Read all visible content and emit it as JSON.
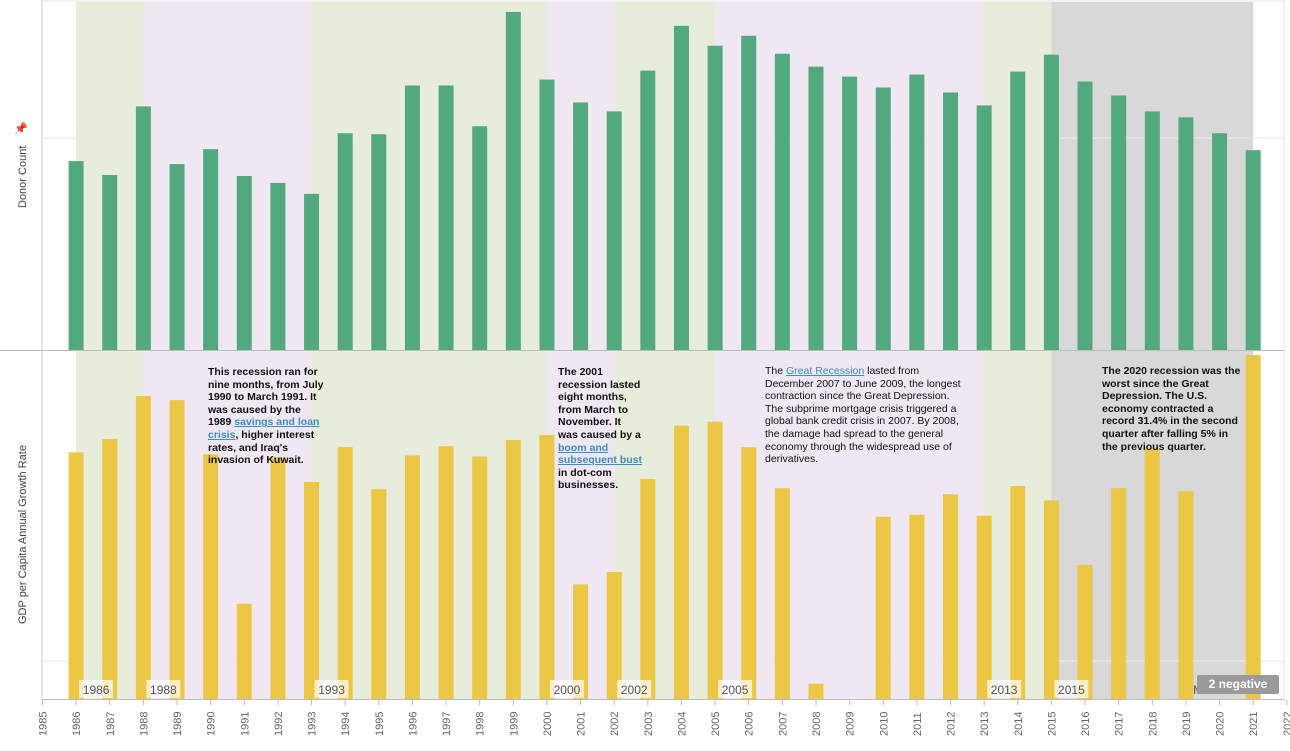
{
  "chart_data": [
    {
      "type": "bar",
      "ylabel": "Donor Count",
      "x": [
        1986,
        1987,
        1988,
        1989,
        1990,
        1991,
        1992,
        1993,
        1994,
        1995,
        1996,
        1997,
        1998,
        1999,
        2000,
        2001,
        2002,
        2003,
        2004,
        2005,
        2006,
        2007,
        2008,
        2009,
        2010,
        2011,
        2012,
        2013,
        2014,
        2015,
        2016,
        2017,
        2018,
        2019,
        2020,
        2021
      ],
      "values": [
        190,
        176,
        245,
        187,
        202,
        175,
        168,
        157,
        218,
        217,
        266,
        266,
        225,
        340,
        272,
        249,
        240,
        281,
        326,
        306,
        316,
        298,
        285,
        275,
        264,
        277,
        259,
        246,
        280,
        297,
        270,
        256,
        240,
        234,
        218,
        201
      ],
      "ylim": [
        0,
        350
      ],
      "color": "#52a97e"
    },
    {
      "type": "bar",
      "ylabel": "GDP per Capita Annual Growth Rate",
      "x": [
        1986,
        1987,
        1988,
        1989,
        1990,
        1991,
        1992,
        1993,
        1994,
        1995,
        1996,
        1997,
        1998,
        1999,
        2000,
        2001,
        2002,
        2003,
        2004,
        2005,
        2006,
        2007,
        2008,
        2009,
        2010,
        2011,
        2012,
        2013,
        2014,
        2015,
        2016,
        2017,
        2018,
        2019,
        2020,
        2021
      ],
      "values": [
        2.41,
        2.54,
        2.96,
        2.92,
        2.39,
        0.93,
        2.36,
        2.12,
        2.46,
        2.05,
        2.38,
        2.47,
        2.37,
        2.53,
        2.58,
        1.12,
        1.24,
        2.15,
        2.67,
        2.71,
        2.46,
        2.06,
        0.15,
        0,
        1.78,
        1.8,
        2.0,
        1.79,
        2.08,
        1.94,
        1.31,
        2.06,
        2.45,
        2.03,
        0,
        3.36
      ],
      "ylim": [
        0,
        3.4
      ],
      "color": "#ebc745"
    }
  ],
  "x_axis": {
    "ticks": [
      1985,
      1986,
      1987,
      1988,
      1989,
      1990,
      1991,
      1992,
      1993,
      1994,
      1995,
      1996,
      1997,
      1998,
      1999,
      2000,
      2001,
      2002,
      2003,
      2004,
      2005,
      2006,
      2007,
      2008,
      2009,
      2010,
      2011,
      2012,
      2013,
      2014,
      2015,
      2016,
      2017,
      2018,
      2019,
      2020,
      2021,
      2022
    ],
    "range": [
      1985,
      2022
    ]
  },
  "bands": [
    {
      "from": 1986,
      "to": 1988,
      "color": "#e8ecda",
      "label": "1986"
    },
    {
      "from": 1988,
      "to": 1993,
      "color": "#efe7f2",
      "label": "1988"
    },
    {
      "from": 1993,
      "to": 2000,
      "color": "#e8ecda",
      "label": "1993"
    },
    {
      "from": 2000,
      "to": 2002,
      "color": "#efe7f2",
      "label": "2000"
    },
    {
      "from": 2002,
      "to": 2005,
      "color": "#e8ecda",
      "label": "2002"
    },
    {
      "from": 2005,
      "to": 2013,
      "color": "#efe7f2",
      "label": "2005"
    },
    {
      "from": 2013,
      "to": 2015,
      "color": "#e8ecda",
      "label": "2013"
    },
    {
      "from": 2015,
      "to": 2021,
      "color": "#d8d8d8",
      "label": "2015"
    }
  ],
  "trailing_label": "M",
  "annotations": {
    "a1990": {
      "line1": "This recession ran for",
      "line2": "nine months, from July",
      "line3": "1990 to March 1991. It",
      "line4": "was caused by the",
      "pre": "1989 ",
      "link": "savings and loan",
      "link2": "crisis",
      "line6": ", higher interest",
      "line7": "rates, and Iraq's",
      "line8": "invasion of Kuwait."
    },
    "a2001": {
      "line1": "The 2001",
      "line2": "recession lasted",
      "line3": "eight months,",
      "line4": "from March to",
      "line5": "November. It",
      "line6": "was caused by a",
      "link": "boom and",
      "link2": "subsequent bust",
      "line9": "in dot-com",
      "line10": "businesses."
    },
    "a2007": {
      "pre": "The ",
      "link": "Great Recession",
      "line1": " lasted from",
      "line2": "December 2007 to June 2009, the longest",
      "line3": "contraction since the Great Depression.",
      "line4": "The subprime mortgage crisis triggered a",
      "line5": "global bank credit crisis in 2007. By 2008,",
      "line6": "the damage had spread to the general",
      "line7": "economy through the widespread use of",
      "line8": "derivatives."
    },
    "a2020": {
      "line1": "The 2020 recession was the",
      "line2": "worst since the Great",
      "line3": "Depression. The U.S.",
      "line4": "economy contracted a",
      "line5": "record 31.4% in the second",
      "line6": "quarter after falling 5% in",
      "line7": "the previous quarter."
    }
  },
  "badge": "2 negative"
}
